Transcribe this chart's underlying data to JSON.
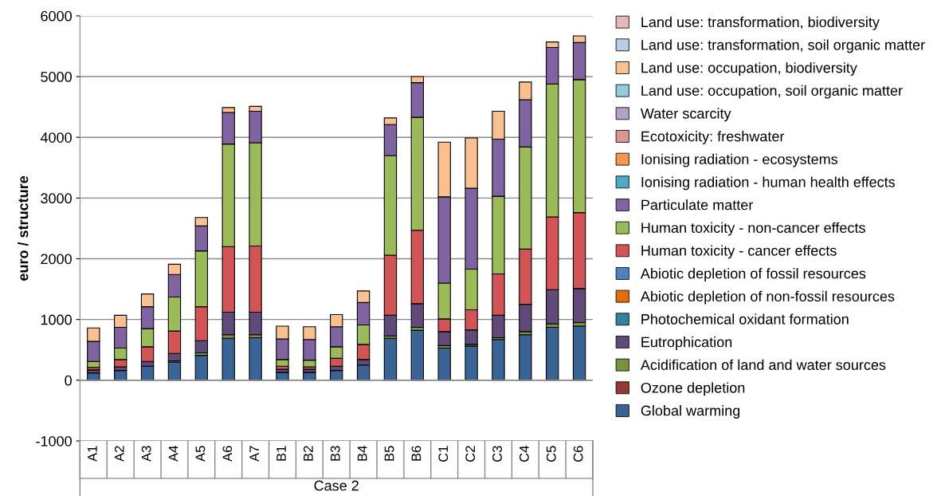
{
  "chart_data": {
    "type": "bar",
    "stacked": true,
    "ylabel": "euro / structure",
    "categories": [
      "A1",
      "A2",
      "A3",
      "A4",
      "A5",
      "A6",
      "A7",
      "B1",
      "B2",
      "B3",
      "B4",
      "B5",
      "B6",
      "C1",
      "C2",
      "C3",
      "C4",
      "C5",
      "C6"
    ],
    "ylim": [
      -1000,
      6000
    ],
    "yticks": [
      -1000,
      0,
      1000,
      2000,
      3000,
      4000,
      5000,
      6000
    ],
    "grid": "y",
    "legend": "right",
    "annotations": [
      "Case 2"
    ],
    "series": [
      {
        "name": "Global warming",
        "color": "#3a6496",
        "values": [
          120,
          160,
          230,
          300,
          410,
          690,
          700,
          130,
          130,
          160,
          250,
          690,
          820,
          530,
          560,
          670,
          750,
          870,
          890
        ]
      },
      {
        "name": "Ozone depletion",
        "color": "#953735",
        "values": [
          null,
          null,
          null,
          null,
          null,
          null,
          null,
          null,
          null,
          null,
          null,
          null,
          null,
          null,
          null,
          null,
          null,
          null,
          null
        ]
      },
      {
        "name": "Acidification of land and water sources",
        "color": "#77933c",
        "values": [
          null,
          null,
          null,
          20,
          40,
          60,
          50,
          null,
          null,
          null,
          null,
          40,
          50,
          40,
          30,
          30,
          50,
          60,
          60
        ]
      },
      {
        "name": "Eutrophication",
        "color": "#604a7b",
        "values": [
          50,
          60,
          80,
          120,
          200,
          370,
          370,
          50,
          50,
          70,
          90,
          340,
          390,
          230,
          240,
          370,
          450,
          560,
          560
        ]
      },
      {
        "name": "Photochemical oxidant formation",
        "color": "#31849b",
        "values": [
          null,
          null,
          null,
          null,
          null,
          null,
          null,
          null,
          null,
          null,
          null,
          null,
          null,
          null,
          null,
          null,
          null,
          null,
          null
        ]
      },
      {
        "name": "Abiotic depletion of non-fossil resources",
        "color": "#e46c0a",
        "values": [
          null,
          null,
          null,
          null,
          null,
          null,
          null,
          null,
          null,
          null,
          null,
          null,
          null,
          null,
          null,
          null,
          null,
          null,
          null
        ]
      },
      {
        "name": "Abiotic depletion of fossil resources",
        "color": "#4f81bd",
        "values": [
          null,
          null,
          null,
          null,
          null,
          null,
          null,
          null,
          null,
          null,
          null,
          null,
          null,
          null,
          null,
          null,
          null,
          null,
          null
        ]
      },
      {
        "name": "Human toxicity - cancer effects",
        "color": "#d35454",
        "values": [
          40,
          120,
          240,
          370,
          560,
          1080,
          1090,
          50,
          40,
          130,
          250,
          990,
          1210,
          210,
          330,
          680,
          910,
          1200,
          1250
        ]
      },
      {
        "name": "Human toxicity - non-cancer effects",
        "color": "#9bbb59",
        "values": [
          100,
          190,
          300,
          560,
          920,
          1690,
          1700,
          110,
          110,
          190,
          320,
          1640,
          1860,
          590,
          670,
          1280,
          1680,
          2190,
          2190
        ]
      },
      {
        "name": "Particulate matter",
        "color": "#8064a2",
        "values": [
          330,
          340,
          360,
          370,
          410,
          520,
          520,
          340,
          340,
          330,
          370,
          510,
          570,
          1420,
          1330,
          940,
          780,
          600,
          610
        ]
      },
      {
        "name": "Ionising radiation - human health effects",
        "color": "#4bacc6",
        "values": [
          null,
          null,
          null,
          null,
          null,
          null,
          null,
          null,
          null,
          null,
          null,
          null,
          null,
          null,
          null,
          null,
          null,
          null,
          null
        ]
      },
      {
        "name": "Ionising radiation - ecosystems",
        "color": "#f79646",
        "values": [
          null,
          null,
          null,
          null,
          null,
          null,
          null,
          null,
          null,
          null,
          null,
          null,
          null,
          null,
          null,
          null,
          null,
          null,
          null
        ]
      },
      {
        "name": "Ecotoxicity: freshwater",
        "color": "#d99694",
        "values": [
          null,
          null,
          null,
          null,
          null,
          null,
          null,
          null,
          null,
          null,
          null,
          null,
          null,
          null,
          null,
          null,
          null,
          null,
          null
        ]
      },
      {
        "name": "Water scarcity",
        "color": "#b3a2c7",
        "values": [
          null,
          null,
          null,
          null,
          null,
          null,
          null,
          null,
          null,
          null,
          null,
          null,
          null,
          null,
          null,
          null,
          null,
          null,
          null
        ]
      },
      {
        "name": "Land use: occupation, soil organic matter",
        "color": "#93cddd",
        "values": [
          null,
          null,
          null,
          null,
          null,
          null,
          null,
          null,
          null,
          null,
          null,
          null,
          null,
          null,
          null,
          null,
          null,
          null,
          null
        ]
      },
      {
        "name": "Land use: occupation, biodiversity",
        "color": "#fac090",
        "values": [
          220,
          200,
          210,
          170,
          140,
          80,
          80,
          210,
          210,
          200,
          190,
          110,
          100,
          900,
          830,
          460,
          290,
          90,
          110
        ]
      },
      {
        "name": "Land use: transformation, soil organic matter",
        "color": "#b9cde5",
        "values": [
          null,
          null,
          null,
          null,
          null,
          null,
          null,
          null,
          null,
          null,
          null,
          null,
          null,
          null,
          null,
          null,
          null,
          null,
          null
        ]
      },
      {
        "name": "Land use: transformation, biodiversity",
        "color": "#e6b9b8",
        "values": [
          null,
          null,
          null,
          null,
          null,
          null,
          null,
          null,
          null,
          null,
          null,
          null,
          null,
          null,
          null,
          null,
          null,
          null,
          null
        ]
      }
    ]
  }
}
